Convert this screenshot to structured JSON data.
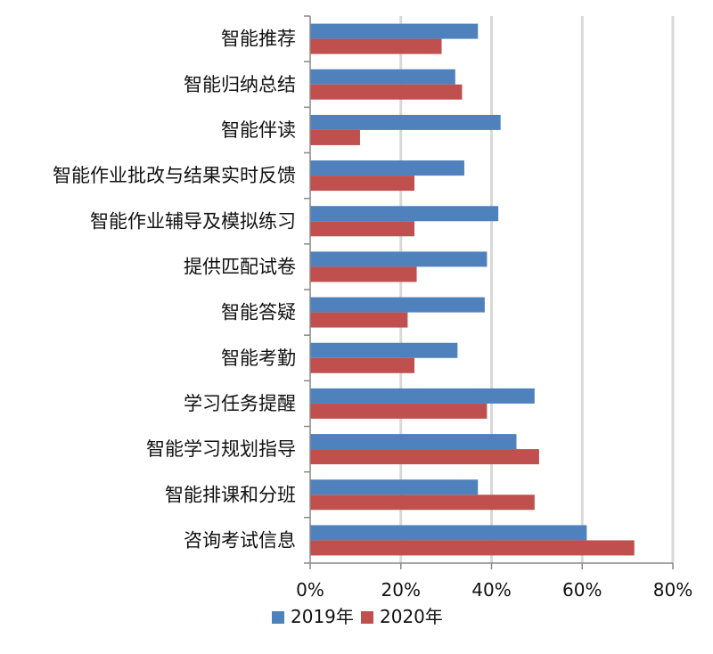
{
  "chart_data": {
    "type": "bar",
    "orientation": "horizontal",
    "categories": [
      "智能推荐",
      "智能归纳总结",
      "智能伴读",
      "智能作业批改与结果实时反馈",
      "智能作业辅导及模拟练习",
      "提供匹配试卷",
      "智能答疑",
      "智能考勤",
      "学习任务提醒",
      "智能学习规划指导",
      "智能排课和分班",
      "咨询考试信息"
    ],
    "series": [
      {
        "name": "2019年",
        "color": "#4f81bd",
        "values": [
          37,
          32,
          42,
          34,
          41.5,
          39,
          38.5,
          32.5,
          49.5,
          45.5,
          37,
          61
        ]
      },
      {
        "name": "2020年",
        "color": "#c0504d",
        "values": [
          29,
          33.5,
          11,
          23,
          23,
          23.5,
          21.5,
          23,
          39,
          50.5,
          49.5,
          71.5
        ]
      }
    ],
    "xlim": [
      0,
      80
    ],
    "xticks": [
      0,
      20,
      40,
      60,
      80
    ],
    "xtick_labels": [
      "0%",
      "20%",
      "40%",
      "60%",
      "80%"
    ],
    "grid": true,
    "legend_position": "bottom"
  }
}
